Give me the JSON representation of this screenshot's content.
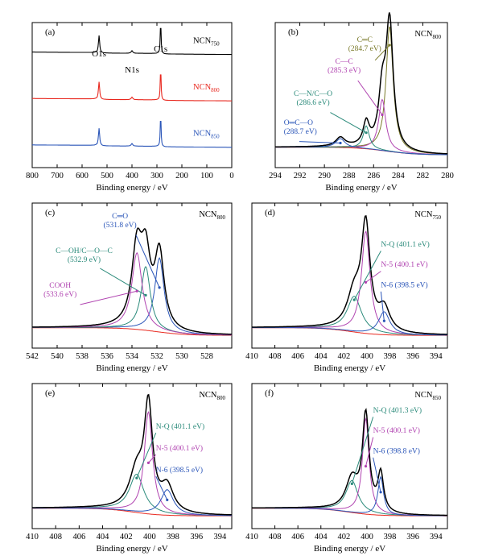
{
  "chart_data": [
    {
      "type": "line",
      "panel": "(a)",
      "xlabel": "Binding energy / eV",
      "xlim": [
        800,
        0
      ],
      "xticks": [
        800,
        700,
        600,
        500,
        400,
        300,
        200,
        100,
        0
      ],
      "peak_labels": [
        {
          "text": "O1s",
          "x": 532
        },
        {
          "text": "N1s",
          "x": 400
        },
        {
          "text": "C1s",
          "x": 285
        }
      ],
      "series": [
        {
          "name": "NCN750",
          "name_base": "NCN",
          "name_sub": "750",
          "color": "#000000",
          "offset": 0.78,
          "amp": 0.22
        },
        {
          "name": "NCN800",
          "name_base": "NCN",
          "name_sub": "800",
          "color": "#e8281f",
          "offset": 0.46,
          "amp": 0.22
        },
        {
          "name": "NCN850",
          "name_base": "NCN",
          "name_sub": "850",
          "color": "#2a55b8",
          "offset": 0.14,
          "amp": 0.22
        }
      ]
    },
    {
      "type": "line",
      "panel": "(b)",
      "title": "NCN800",
      "title_base": "NCN",
      "title_sub": "800",
      "xlabel": "Binding energy / eV",
      "xlim": [
        294,
        280
      ],
      "xticks": [
        294,
        292,
        290,
        288,
        286,
        284,
        282,
        280
      ],
      "components": [
        {
          "label": "C=C",
          "label_display": "C═C",
          "position": "(284.7 eV)",
          "center": 284.7,
          "height": 0.98,
          "width": 0.7,
          "color": "#7a7a2a"
        },
        {
          "label": "C-C",
          "label_display": "C—C",
          "position": "(285.3 eV)",
          "center": 285.3,
          "height": 0.4,
          "width": 0.7,
          "color": "#b043b0"
        },
        {
          "label": "C-N/C-O",
          "label_display": "C—N/C—O",
          "position": "(286.6 eV)",
          "center": 286.6,
          "height": 0.18,
          "width": 0.6,
          "color": "#2a8a7a"
        },
        {
          "label": "O=C-O",
          "label_display": "O═C—O",
          "position": "(288.7 eV)",
          "center": 288.7,
          "height": 0.07,
          "width": 0.9,
          "color": "#2a55b8"
        }
      ]
    },
    {
      "type": "line",
      "panel": "(c)",
      "title": "NCN800",
      "title_base": "NCN",
      "title_sub": "800",
      "xlabel": "Binding energy / eV",
      "xlim": [
        542,
        526
      ],
      "xticks": [
        542,
        540,
        538,
        536,
        534,
        532,
        530,
        528
      ],
      "components": [
        {
          "label": "C=O",
          "label_display": "C═O",
          "position": "(531.8 eV)",
          "center": 531.8,
          "height": 0.58,
          "width": 0.9,
          "color": "#2a55b8"
        },
        {
          "label": "C-OH/C-O-C",
          "label_display": "C—OH/C—O—C",
          "position": "(532.9 eV)",
          "center": 532.9,
          "height": 0.5,
          "width": 0.9,
          "color": "#2a8a7a"
        },
        {
          "label": "COOH",
          "label_display": "COOH",
          "position": "(533.6 eV)",
          "center": 533.6,
          "height": 0.6,
          "width": 1.0,
          "color": "#b043b0"
        }
      ]
    },
    {
      "type": "line",
      "panel": "(d)",
      "title": "NCN750",
      "title_base": "NCN",
      "title_sub": "750",
      "xlabel": "Binding energy / eV",
      "xlim": [
        410,
        393
      ],
      "xticks": [
        410,
        408,
        406,
        404,
        402,
        400,
        398,
        396,
        394
      ],
      "components": [
        {
          "label": "N-Q (401.1 eV)",
          "center": 401.1,
          "height": 0.28,
          "width": 1.5,
          "color": "#2a8a7a"
        },
        {
          "label": "N-5 (400.1 eV)",
          "center": 400.1,
          "height": 0.8,
          "width": 0.9,
          "color": "#b043b0"
        },
        {
          "label": "N-6 (398.5 eV)",
          "center": 398.5,
          "height": 0.18,
          "width": 1.2,
          "color": "#2a55b8"
        }
      ]
    },
    {
      "type": "line",
      "panel": "(e)",
      "title": "NCN800",
      "title_base": "NCN",
      "title_sub": "800",
      "xlabel": "Binding energy / eV",
      "xlim": [
        410,
        393
      ],
      "xticks": [
        410,
        408,
        406,
        404,
        402,
        400,
        398,
        396,
        394
      ],
      "components": [
        {
          "label": "N-Q (401.1 eV)",
          "center": 401.1,
          "height": 0.3,
          "width": 1.5,
          "color": "#2a8a7a"
        },
        {
          "label": "N-5 (400.1 eV)",
          "center": 400.1,
          "height": 0.8,
          "width": 0.85,
          "color": "#b043b0"
        },
        {
          "label": "N-6 (398.5 eV)",
          "center": 398.5,
          "height": 0.2,
          "width": 1.3,
          "color": "#2a55b8"
        }
      ]
    },
    {
      "type": "line",
      "panel": "(f)",
      "title": "NCN850",
      "title_base": "NCN",
      "title_sub": "850",
      "xlabel": "Binding energy / eV",
      "xlim": [
        410,
        393
      ],
      "xticks": [
        410,
        408,
        406,
        404,
        402,
        400,
        398,
        396,
        394
      ],
      "components": [
        {
          "label": "N-Q (401.3 eV)",
          "center": 401.3,
          "height": 0.25,
          "width": 1.3,
          "color": "#2a8a7a"
        },
        {
          "label": "N-5 (400.1 eV)",
          "center": 400.1,
          "height": 0.75,
          "width": 0.7,
          "color": "#b043b0"
        },
        {
          "label": "N-6 (398.8 eV)",
          "center": 398.8,
          "height": 0.3,
          "width": 0.6,
          "color": "#2a55b8"
        }
      ]
    }
  ]
}
